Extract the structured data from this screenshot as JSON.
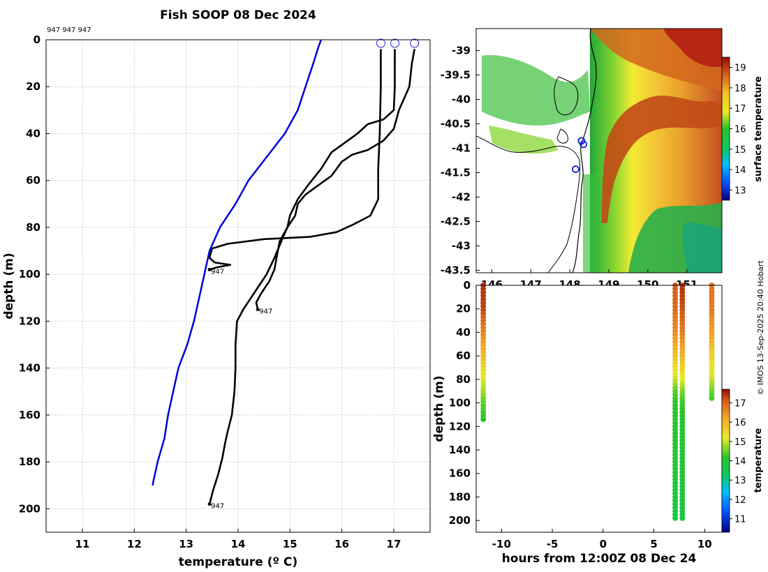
{
  "title": "Fish SOOP 08 Dec 2024",
  "credit": "© IMOS 13-Sep-2025 20:40 Hobart",
  "chart_data": [
    {
      "type": "line",
      "name": "profiles",
      "xlabel": "temperature (º C)",
      "ylabel": "depth (m)",
      "xlim": [
        10.3,
        17.7
      ],
      "ylim": [
        210,
        0
      ],
      "xticks": [
        11,
        12,
        13,
        14,
        15,
        16,
        17
      ],
      "yticks": [
        0,
        20,
        40,
        60,
        80,
        100,
        120,
        140,
        160,
        180,
        200
      ],
      "grid": true,
      "top_label": "947 947 947",
      "climatology": {
        "name": "climatology",
        "color": "#0000dd",
        "points": [
          [
            15.6,
            0
          ],
          [
            15.55,
            3
          ],
          [
            15.45,
            10
          ],
          [
            15.3,
            20
          ],
          [
            15.15,
            30
          ],
          [
            14.9,
            40
          ],
          [
            14.55,
            50
          ],
          [
            14.2,
            60
          ],
          [
            13.95,
            70
          ],
          [
            13.65,
            80
          ],
          [
            13.45,
            90
          ],
          [
            13.35,
            100
          ],
          [
            13.25,
            110
          ],
          [
            13.15,
            120
          ],
          [
            13.02,
            130
          ],
          [
            12.85,
            140
          ],
          [
            12.75,
            150
          ],
          [
            12.65,
            160
          ],
          [
            12.58,
            170
          ],
          [
            12.45,
            180
          ],
          [
            12.35,
            190
          ]
        ]
      },
      "series": [
        {
          "name": "profile 1",
          "color": "#000000",
          "points": [
            [
              16.75,
              4
            ],
            [
              16.75,
              20
            ],
            [
              16.73,
              40
            ],
            [
              16.7,
              55
            ],
            [
              16.7,
              68
            ],
            [
              16.55,
              75
            ],
            [
              16.2,
              79
            ],
            [
              15.9,
              82
            ],
            [
              15.4,
              84
            ],
            [
              14.5,
              85
            ],
            [
              13.8,
              87
            ],
            [
              13.5,
              89
            ],
            [
              13.45,
              93
            ],
            [
              13.55,
              95
            ],
            [
              13.85,
              96
            ],
            [
              13.6,
              97
            ],
            [
              13.45,
              98
            ]
          ]
        },
        {
          "name": "profile 2",
          "color": "#000000",
          "points": [
            [
              17.02,
              4
            ],
            [
              17.02,
              20
            ],
            [
              17.0,
              30
            ],
            [
              16.8,
              34
            ],
            [
              16.5,
              36
            ],
            [
              16.3,
              40
            ],
            [
              16.05,
              44
            ],
            [
              15.8,
              48
            ],
            [
              15.6,
              55
            ],
            [
              15.35,
              62
            ],
            [
              15.15,
              68
            ],
            [
              15.0,
              75
            ],
            [
              14.95,
              80
            ],
            [
              14.85,
              84
            ],
            [
              14.8,
              86
            ],
            [
              14.75,
              92
            ],
            [
              14.7,
              98
            ],
            [
              14.6,
              103
            ],
            [
              14.45,
              108
            ],
            [
              14.35,
              112
            ],
            [
              14.38,
              115
            ]
          ]
        },
        {
          "name": "profile 3",
          "color": "#000000",
          "points": [
            [
              17.4,
              4
            ],
            [
              17.35,
              10
            ],
            [
              17.3,
              20
            ],
            [
              17.1,
              30
            ],
            [
              17.0,
              38
            ],
            [
              16.8,
              43
            ],
            [
              16.5,
              47
            ],
            [
              16.2,
              49
            ],
            [
              16.0,
              52
            ],
            [
              15.8,
              58
            ],
            [
              15.55,
              62
            ],
            [
              15.3,
              66
            ],
            [
              15.15,
              70
            ],
            [
              15.1,
              75
            ],
            [
              14.95,
              80
            ],
            [
              14.85,
              85
            ],
            [
              14.7,
              93
            ],
            [
              14.55,
              100
            ],
            [
              14.4,
              105
            ],
            [
              14.25,
              110
            ],
            [
              14.1,
              115
            ],
            [
              13.98,
              120
            ],
            [
              13.95,
              130
            ],
            [
              13.95,
              140
            ],
            [
              13.93,
              150
            ],
            [
              13.88,
              160
            ],
            [
              13.8,
              167
            ],
            [
              13.75,
              172
            ],
            [
              13.7,
              178
            ],
            [
              13.62,
              185
            ],
            [
              13.52,
              192
            ],
            [
              13.45,
              198
            ]
          ]
        }
      ],
      "end_labels": [
        {
          "text": "947",
          "x": 13.45,
          "y": 98
        },
        {
          "text": "947",
          "x": 14.38,
          "y": 115
        },
        {
          "text": "947",
          "x": 13.45,
          "y": 198
        }
      ],
      "start_markers": [
        [
          16.75,
          1.5
        ],
        [
          17.02,
          1.5
        ],
        [
          17.4,
          1.5
        ]
      ]
    },
    {
      "type": "heatmap",
      "name": "map",
      "colorbar_label": "surface temperature",
      "colorbar_ticks": [
        13,
        14,
        15,
        16,
        17,
        18,
        19
      ],
      "colorbar_range": [
        12.5,
        19.5
      ],
      "xlim": [
        145.6,
        151.9
      ],
      "ylim": [
        -43.55,
        -38.55
      ],
      "xticks": [
        146,
        147,
        148,
        149,
        150,
        151
      ],
      "yticks": [
        -39,
        -39.5,
        -40,
        -40.5,
        -41,
        -41.5,
        -42,
        -42.5,
        -43,
        -43.5
      ],
      "tracks": [
        [
          148.3,
          -40.85
        ],
        [
          148.35,
          -40.92
        ],
        [
          148.15,
          -41.43
        ]
      ]
    },
    {
      "type": "scatter",
      "name": "time-depth",
      "xlabel": "hours from 12:00Z 08 Dec 24",
      "ylabel": "depth (m)",
      "colorbar_label": "temperature",
      "colorbar_ticks": [
        11,
        12,
        13,
        14,
        15,
        16,
        17
      ],
      "colorbar_range": [
        10.3,
        17.7
      ],
      "xlim": [
        -12.5,
        11.7
      ],
      "ylim": [
        210,
        0
      ],
      "xticks": [
        -10,
        -5,
        0,
        5,
        10
      ],
      "yticks": [
        0,
        20,
        40,
        60,
        80,
        100,
        120,
        140,
        160,
        180,
        200
      ],
      "casts": [
        {
          "x": -11.8,
          "max_depth": 115,
          "profile": [
            [
              0,
              17.4
            ],
            [
              20,
              17.3
            ],
            [
              40,
              16.6
            ],
            [
              60,
              15.9
            ],
            [
              80,
              15.1
            ],
            [
              90,
              14.8
            ],
            [
              100,
              14.4
            ],
            [
              115,
              14.1
            ]
          ]
        },
        {
          "x": 7.1,
          "max_depth": 198,
          "profile": [
            [
              0,
              17.1
            ],
            [
              20,
              16.9
            ],
            [
              40,
              16.5
            ],
            [
              60,
              15.8
            ],
            [
              80,
              15.0
            ],
            [
              90,
              14.4
            ],
            [
              100,
              14.1
            ],
            [
              120,
              14.0
            ],
            [
              160,
              13.9
            ],
            [
              198,
              13.6
            ]
          ]
        },
        {
          "x": 7.8,
          "max_depth": 198,
          "profile": [
            [
              0,
              17.4
            ],
            [
              20,
              17.2
            ],
            [
              40,
              16.7
            ],
            [
              60,
              16.0
            ],
            [
              80,
              15.2
            ],
            [
              90,
              14.6
            ],
            [
              100,
              14.2
            ],
            [
              120,
              14.0
            ],
            [
              160,
              13.9
            ],
            [
              198,
              13.6
            ]
          ]
        },
        {
          "x": 10.7,
          "max_depth": 98,
          "profile": [
            [
              0,
              16.8
            ],
            [
              20,
              16.7
            ],
            [
              40,
              16.3
            ],
            [
              60,
              15.6
            ],
            [
              80,
              15.0
            ],
            [
              90,
              14.5
            ],
            [
              98,
              14.2
            ]
          ]
        }
      ]
    }
  ]
}
